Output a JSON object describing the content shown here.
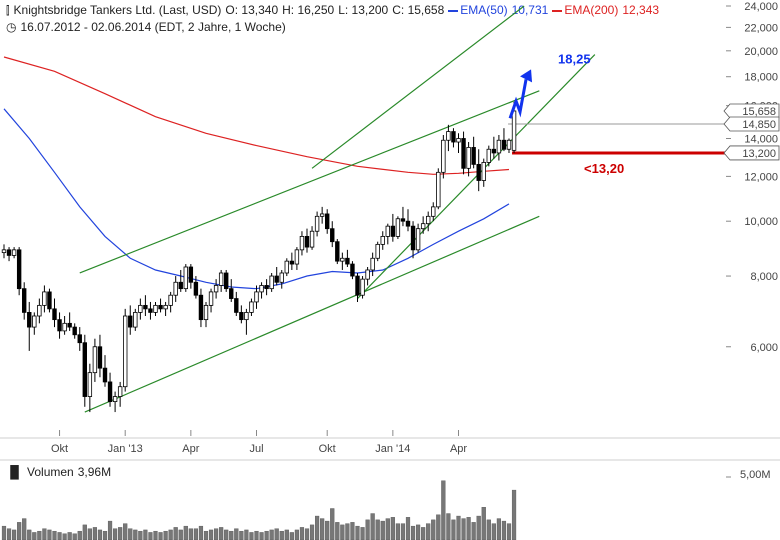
{
  "header": {
    "line1": {
      "title": "Knightsbridge Tankers Ltd. (Last, USD)",
      "open": "O: 13,340",
      "high": "H: 16,250",
      "low": "L: 13,200",
      "close": "C: 15,658",
      "ema50_label": "EMA(50)",
      "ema50_value": "10,731",
      "ema200_label": "EMA(200)",
      "ema200_value": "12,343"
    },
    "line2": {
      "range": "16.07.2012 - 02.06.2014 (EDT, 2 Jahre, 1 Woche)"
    }
  },
  "volume_panel": {
    "label": "Volumen",
    "value": "3,96M",
    "axis_label": "5,00M"
  },
  "annotations": {
    "target": "18,25",
    "stop": "<13,20",
    "price_tags": [
      "15,658",
      "14,850",
      "13,200"
    ]
  },
  "colors": {
    "ema50": "#2244dd",
    "ema200": "#dd2222",
    "trend": "#2a8a2a",
    "target": "#1133ee",
    "stop": "#cc0000",
    "candle": "#000000",
    "volume": "#777777"
  },
  "chart_data": {
    "type": "candlestick",
    "title": "Knightsbridge Tankers Ltd. (Last, USD)",
    "period": "16.07.2012 - 02.06.2014",
    "y_scale": "log",
    "ylim": [
      4.4,
      24
    ],
    "y_ticks": [
      {
        "value": 6,
        "label": "6,000"
      },
      {
        "value": 8,
        "label": "8,000"
      },
      {
        "value": 10,
        "label": "10,000"
      },
      {
        "value": 12,
        "label": "12,000"
      },
      {
        "value": 14,
        "label": "14,000"
      },
      {
        "value": 16,
        "label": "16,000"
      },
      {
        "value": 18,
        "label": "18,000"
      },
      {
        "value": 20,
        "label": "20,000"
      },
      {
        "value": 22,
        "label": "22,000"
      },
      {
        "value": 24,
        "label": "24,000"
      }
    ],
    "x_ticks": [
      {
        "week": 11,
        "label": "Okt"
      },
      {
        "week": 24,
        "label": "Jan '13"
      },
      {
        "week": 37,
        "label": "Apr"
      },
      {
        "week": 50,
        "label": "Jul"
      },
      {
        "week": 64,
        "label": "Okt"
      },
      {
        "week": 77,
        "label": "Jan '14"
      },
      {
        "week": 90,
        "label": "Apr"
      }
    ],
    "week_count": 103,
    "candles": [
      {
        "week": 0,
        "o": 8.8,
        "h": 9.1,
        "l": 8.6,
        "c": 8.9
      },
      {
        "week": 1,
        "o": 8.9,
        "h": 9.0,
        "l": 8.5,
        "c": 8.7
      },
      {
        "week": 2,
        "o": 8.7,
        "h": 9.0,
        "l": 8.6,
        "c": 8.9
      },
      {
        "week": 3,
        "o": 8.9,
        "h": 9.0,
        "l": 7.4,
        "c": 7.6
      },
      {
        "week": 4,
        "o": 7.6,
        "h": 7.8,
        "l": 6.7,
        "c": 6.9
      },
      {
        "week": 5,
        "o": 6.9,
        "h": 7.2,
        "l": 5.9,
        "c": 6.5
      },
      {
        "week": 6,
        "o": 6.5,
        "h": 6.9,
        "l": 6.3,
        "c": 6.8
      },
      {
        "week": 7,
        "o": 6.8,
        "h": 7.3,
        "l": 6.6,
        "c": 7.1
      },
      {
        "week": 8,
        "o": 7.1,
        "h": 7.7,
        "l": 6.9,
        "c": 7.5
      },
      {
        "week": 9,
        "o": 7.5,
        "h": 7.6,
        "l": 6.9,
        "c": 7.0
      },
      {
        "week": 10,
        "o": 7.0,
        "h": 7.3,
        "l": 6.5,
        "c": 6.7
      },
      {
        "week": 11,
        "o": 6.7,
        "h": 6.9,
        "l": 6.2,
        "c": 6.4
      },
      {
        "week": 12,
        "o": 6.4,
        "h": 6.8,
        "l": 6.3,
        "c": 6.6
      },
      {
        "week": 13,
        "o": 6.6,
        "h": 6.9,
        "l": 6.4,
        "c": 6.5
      },
      {
        "week": 14,
        "o": 6.5,
        "h": 6.6,
        "l": 6.2,
        "c": 6.3
      },
      {
        "week": 15,
        "o": 6.3,
        "h": 6.5,
        "l": 5.9,
        "c": 6.1
      },
      {
        "week": 16,
        "o": 6.1,
        "h": 6.3,
        "l": 4.7,
        "c": 4.9
      },
      {
        "week": 17,
        "o": 4.9,
        "h": 5.6,
        "l": 4.6,
        "c": 5.4
      },
      {
        "week": 18,
        "o": 5.4,
        "h": 6.2,
        "l": 5.2,
        "c": 6.0
      },
      {
        "week": 19,
        "o": 6.0,
        "h": 6.3,
        "l": 5.3,
        "c": 5.5
      },
      {
        "week": 20,
        "o": 5.5,
        "h": 5.8,
        "l": 5.1,
        "c": 5.2
      },
      {
        "week": 21,
        "o": 5.2,
        "h": 5.4,
        "l": 4.7,
        "c": 4.8
      },
      {
        "week": 22,
        "o": 4.8,
        "h": 5.0,
        "l": 4.6,
        "c": 4.9
      },
      {
        "week": 23,
        "o": 4.9,
        "h": 5.2,
        "l": 4.7,
        "c": 5.1
      },
      {
        "week": 24,
        "o": 5.1,
        "h": 7.0,
        "l": 5.0,
        "c": 6.8
      },
      {
        "week": 25,
        "o": 6.8,
        "h": 7.1,
        "l": 6.3,
        "c": 6.5
      },
      {
        "week": 26,
        "o": 6.5,
        "h": 7.0,
        "l": 6.4,
        "c": 6.9
      },
      {
        "week": 27,
        "o": 6.9,
        "h": 7.3,
        "l": 6.7,
        "c": 7.1
      },
      {
        "week": 28,
        "o": 7.1,
        "h": 7.4,
        "l": 6.8,
        "c": 7.0
      },
      {
        "week": 29,
        "o": 7.0,
        "h": 7.2,
        "l": 6.7,
        "c": 6.9
      },
      {
        "week": 30,
        "o": 6.9,
        "h": 7.2,
        "l": 6.8,
        "c": 7.1
      },
      {
        "week": 31,
        "o": 7.1,
        "h": 7.3,
        "l": 6.9,
        "c": 7.0
      },
      {
        "week": 32,
        "o": 7.0,
        "h": 7.2,
        "l": 6.8,
        "c": 7.1
      },
      {
        "week": 33,
        "o": 7.1,
        "h": 7.5,
        "l": 6.9,
        "c": 7.4
      },
      {
        "week": 34,
        "o": 7.4,
        "h": 8.0,
        "l": 7.2,
        "c": 7.8
      },
      {
        "week": 35,
        "o": 7.8,
        "h": 8.2,
        "l": 7.5,
        "c": 7.6
      },
      {
        "week": 36,
        "o": 7.6,
        "h": 8.4,
        "l": 7.5,
        "c": 8.3
      },
      {
        "week": 37,
        "o": 8.3,
        "h": 8.4,
        "l": 7.6,
        "c": 7.8
      },
      {
        "week": 38,
        "o": 7.8,
        "h": 8.0,
        "l": 7.3,
        "c": 7.4
      },
      {
        "week": 39,
        "o": 7.4,
        "h": 7.6,
        "l": 6.5,
        "c": 6.7
      },
      {
        "week": 40,
        "o": 6.7,
        "h": 7.2,
        "l": 6.5,
        "c": 7.1
      },
      {
        "week": 41,
        "o": 7.1,
        "h": 7.6,
        "l": 6.9,
        "c": 7.5
      },
      {
        "week": 42,
        "o": 7.5,
        "h": 7.9,
        "l": 7.3,
        "c": 7.7
      },
      {
        "week": 43,
        "o": 7.7,
        "h": 8.2,
        "l": 7.5,
        "c": 8.1
      },
      {
        "week": 44,
        "o": 8.1,
        "h": 8.2,
        "l": 7.5,
        "c": 7.6
      },
      {
        "week": 45,
        "o": 7.6,
        "h": 7.9,
        "l": 7.2,
        "c": 7.3
      },
      {
        "week": 46,
        "o": 7.3,
        "h": 7.5,
        "l": 6.8,
        "c": 6.9
      },
      {
        "week": 47,
        "o": 6.9,
        "h": 7.1,
        "l": 6.6,
        "c": 6.7
      },
      {
        "week": 48,
        "o": 6.7,
        "h": 7.0,
        "l": 6.3,
        "c": 6.9
      },
      {
        "week": 49,
        "o": 6.9,
        "h": 7.3,
        "l": 6.8,
        "c": 7.2
      },
      {
        "week": 50,
        "o": 7.2,
        "h": 7.7,
        "l": 7.0,
        "c": 7.5
      },
      {
        "week": 51,
        "o": 7.5,
        "h": 7.8,
        "l": 7.3,
        "c": 7.7
      },
      {
        "week": 52,
        "o": 7.7,
        "h": 7.9,
        "l": 7.4,
        "c": 7.6
      },
      {
        "week": 53,
        "o": 7.6,
        "h": 8.1,
        "l": 7.5,
        "c": 8.0
      },
      {
        "week": 54,
        "o": 8.0,
        "h": 8.3,
        "l": 7.7,
        "c": 7.8
      },
      {
        "week": 55,
        "o": 7.8,
        "h": 8.2,
        "l": 7.6,
        "c": 8.1
      },
      {
        "week": 56,
        "o": 8.1,
        "h": 8.6,
        "l": 8.0,
        "c": 8.5
      },
      {
        "week": 57,
        "o": 8.5,
        "h": 8.8,
        "l": 8.2,
        "c": 8.4
      },
      {
        "week": 58,
        "o": 8.4,
        "h": 9.0,
        "l": 8.2,
        "c": 8.9
      },
      {
        "week": 59,
        "o": 8.9,
        "h": 9.6,
        "l": 8.7,
        "c": 9.4
      },
      {
        "week": 60,
        "o": 9.4,
        "h": 9.7,
        "l": 8.8,
        "c": 9.0
      },
      {
        "week": 61,
        "o": 9.0,
        "h": 9.8,
        "l": 8.9,
        "c": 9.6
      },
      {
        "week": 62,
        "o": 9.6,
        "h": 10.4,
        "l": 9.4,
        "c": 10.2
      },
      {
        "week": 63,
        "o": 10.2,
        "h": 10.6,
        "l": 9.9,
        "c": 10.3
      },
      {
        "week": 64,
        "o": 10.3,
        "h": 10.5,
        "l": 9.5,
        "c": 9.7
      },
      {
        "week": 65,
        "o": 9.7,
        "h": 10.0,
        "l": 9.0,
        "c": 9.2
      },
      {
        "week": 66,
        "o": 9.2,
        "h": 9.3,
        "l": 8.4,
        "c": 8.5
      },
      {
        "week": 67,
        "o": 8.5,
        "h": 8.8,
        "l": 8.2,
        "c": 8.6
      },
      {
        "week": 68,
        "o": 8.6,
        "h": 8.9,
        "l": 8.3,
        "c": 8.4
      },
      {
        "week": 69,
        "o": 8.4,
        "h": 8.5,
        "l": 7.9,
        "c": 8.0
      },
      {
        "week": 70,
        "o": 8.0,
        "h": 8.1,
        "l": 7.2,
        "c": 7.4
      },
      {
        "week": 71,
        "o": 7.4,
        "h": 8.0,
        "l": 7.3,
        "c": 7.9
      },
      {
        "week": 72,
        "o": 7.9,
        "h": 8.3,
        "l": 7.7,
        "c": 8.2
      },
      {
        "week": 73,
        "o": 8.2,
        "h": 8.8,
        "l": 8.0,
        "c": 8.6
      },
      {
        "week": 74,
        "o": 8.6,
        "h": 9.2,
        "l": 8.5,
        "c": 9.1
      },
      {
        "week": 75,
        "o": 9.1,
        "h": 9.6,
        "l": 8.9,
        "c": 9.4
      },
      {
        "week": 76,
        "o": 9.4,
        "h": 9.9,
        "l": 9.1,
        "c": 9.8
      },
      {
        "week": 77,
        "o": 9.8,
        "h": 10.3,
        "l": 9.2,
        "c": 9.4
      },
      {
        "week": 78,
        "o": 9.4,
        "h": 10.2,
        "l": 9.3,
        "c": 10.1
      },
      {
        "week": 79,
        "o": 10.1,
        "h": 10.6,
        "l": 9.8,
        "c": 10.0
      },
      {
        "week": 80,
        "o": 10.0,
        "h": 10.5,
        "l": 9.6,
        "c": 9.8
      },
      {
        "week": 81,
        "o": 9.8,
        "h": 10.0,
        "l": 8.6,
        "c": 8.9
      },
      {
        "week": 82,
        "o": 8.9,
        "h": 9.9,
        "l": 8.8,
        "c": 9.7
      },
      {
        "week": 83,
        "o": 9.7,
        "h": 10.2,
        "l": 9.5,
        "c": 9.9
      },
      {
        "week": 84,
        "o": 9.9,
        "h": 10.4,
        "l": 9.6,
        "c": 10.2
      },
      {
        "week": 85,
        "o": 10.2,
        "h": 10.8,
        "l": 10.0,
        "c": 10.6
      },
      {
        "week": 86,
        "o": 10.6,
        "h": 12.4,
        "l": 10.5,
        "c": 12.2
      },
      {
        "week": 87,
        "o": 12.2,
        "h": 14.2,
        "l": 11.9,
        "c": 13.9
      },
      {
        "week": 88,
        "o": 13.9,
        "h": 14.8,
        "l": 13.3,
        "c": 14.4
      },
      {
        "week": 89,
        "o": 14.4,
        "h": 14.6,
        "l": 13.5,
        "c": 13.8
      },
      {
        "week": 90,
        "o": 13.8,
        "h": 14.3,
        "l": 13.2,
        "c": 14.0
      },
      {
        "week": 91,
        "o": 14.0,
        "h": 14.4,
        "l": 12.1,
        "c": 12.4
      },
      {
        "week": 92,
        "o": 12.4,
        "h": 13.8,
        "l": 12.0,
        "c": 13.5
      },
      {
        "week": 93,
        "o": 13.5,
        "h": 14.1,
        "l": 12.4,
        "c": 12.6
      },
      {
        "week": 94,
        "o": 12.6,
        "h": 13.4,
        "l": 11.3,
        "c": 11.8
      },
      {
        "week": 95,
        "o": 11.8,
        "h": 12.9,
        "l": 11.5,
        "c": 12.7
      },
      {
        "week": 96,
        "o": 12.7,
        "h": 13.6,
        "l": 12.5,
        "c": 13.4
      },
      {
        "week": 97,
        "o": 13.4,
        "h": 14.1,
        "l": 12.9,
        "c": 13.2
      },
      {
        "week": 98,
        "o": 13.2,
        "h": 14.2,
        "l": 12.8,
        "c": 13.9
      },
      {
        "week": 99,
        "o": 13.9,
        "h": 14.6,
        "l": 13.3,
        "c": 13.4
      },
      {
        "week": 100,
        "o": 13.4,
        "h": 14.0,
        "l": 13.2,
        "c": 13.9
      },
      {
        "week": 101,
        "o": 13.34,
        "h": 16.25,
        "l": 13.2,
        "c": 15.658
      }
    ],
    "ema50": [
      [
        0,
        15.8
      ],
      [
        5,
        14.0
      ],
      [
        10,
        12.2
      ],
      [
        15,
        10.6
      ],
      [
        20,
        9.4
      ],
      [
        25,
        8.6
      ],
      [
        30,
        8.2
      ],
      [
        35,
        8.0
      ],
      [
        40,
        7.8
      ],
      [
        45,
        7.65
      ],
      [
        50,
        7.6
      ],
      [
        55,
        7.75
      ],
      [
        60,
        8.0
      ],
      [
        65,
        8.15
      ],
      [
        70,
        8.1
      ],
      [
        75,
        8.2
      ],
      [
        80,
        8.6
      ],
      [
        85,
        9.1
      ],
      [
        90,
        9.6
      ],
      [
        95,
        10.1
      ],
      [
        100,
        10.731
      ]
    ],
    "ema200": [
      [
        0,
        19.5
      ],
      [
        10,
        18.4
      ],
      [
        20,
        16.8
      ],
      [
        30,
        15.3
      ],
      [
        40,
        14.3
      ],
      [
        50,
        13.6
      ],
      [
        60,
        13.0
      ],
      [
        70,
        12.5
      ],
      [
        80,
        12.2
      ],
      [
        85,
        12.1
      ],
      [
        90,
        12.15
      ],
      [
        95,
        12.25
      ],
      [
        100,
        12.343
      ]
    ],
    "trend_lines": [
      {
        "from": [
          16,
          4.6
        ],
        "to": [
          106,
          10.2
        ]
      },
      {
        "from": [
          15,
          8.1
        ],
        "to": [
          106,
          17.0
        ]
      },
      {
        "from": [
          61,
          12.4
        ],
        "to": [
          103,
          24.0
        ]
      },
      {
        "from": [
          70,
          7.3
        ],
        "to": [
          117,
          19.7
        ]
      }
    ],
    "levels": [
      {
        "value": 14.85,
        "label": "14,850"
      },
      {
        "value": 13.2,
        "label": "13,200"
      }
    ],
    "target_value": 18.25,
    "stop_value": 13.2,
    "volume_millions": [
      1.1,
      0.9,
      0.8,
      1.4,
      1.7,
      0.8,
      0.6,
      0.7,
      0.9,
      0.8,
      0.7,
      0.6,
      0.5,
      0.6,
      0.5,
      0.7,
      1.2,
      0.9,
      1.0,
      0.8,
      0.7,
      1.5,
      0.9,
      1.0,
      1.3,
      0.9,
      0.8,
      0.7,
      0.8,
      0.6,
      0.7,
      0.6,
      0.7,
      0.8,
      1.0,
      0.8,
      1.1,
      0.9,
      0.9,
      1.1,
      0.7,
      0.8,
      0.9,
      1.0,
      0.8,
      0.7,
      0.9,
      0.7,
      0.8,
      0.6,
      0.7,
      0.6,
      0.7,
      0.8,
      0.9,
      0.7,
      0.8,
      0.6,
      0.8,
      1.0,
      0.9,
      1.2,
      1.9,
      1.7,
      1.5,
      2.5,
      1.4,
      1.2,
      1.3,
      1.4,
      1.1,
      1.0,
      1.6,
      2.1,
      1.6,
      1.5,
      1.7,
      1.8,
      1.3,
      1.3,
      1.8,
      1.1,
      1.2,
      1.0,
      1.3,
      1.6,
      2.0,
      4.7,
      2.1,
      1.6,
      1.9,
      1.7,
      1.8,
      1.4,
      1.9,
      2.6,
      1.6,
      1.3,
      1.7,
      1.5,
      1.3,
      3.96
    ],
    "volume_ylim": [
      0,
      5.0
    ]
  }
}
